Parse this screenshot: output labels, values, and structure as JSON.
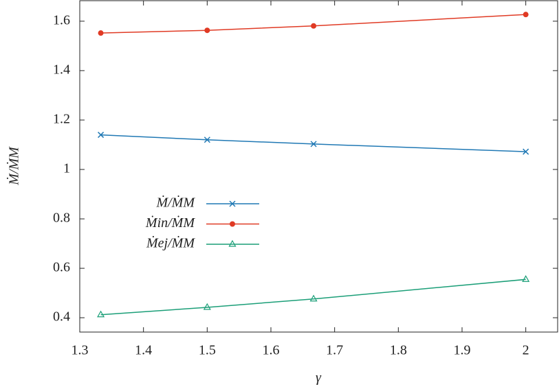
{
  "chart_data": {
    "type": "line",
    "x_label": "γ",
    "y_label": "Ṁ/ṀM",
    "x": [
      1.333,
      1.5,
      1.667,
      2
    ],
    "series": [
      {
        "name": "Ṁ/ṀM",
        "color": "#1f78b4",
        "marker": "x",
        "values": [
          1.14,
          1.12,
          1.103,
          1.072
        ]
      },
      {
        "name": "Ṁin/ṀM",
        "color": "#e03a24",
        "marker": "circle",
        "values": [
          1.552,
          1.563,
          1.581,
          1.627
        ]
      },
      {
        "name": "Ṁej/ṀM",
        "color": "#1a9e77",
        "marker": "triangle",
        "values": [
          0.412,
          0.442,
          0.476,
          0.555
        ]
      }
    ],
    "xlim": [
      1.3,
      2.05
    ],
    "xticks": [
      1.3,
      1.4,
      1.5,
      1.6,
      1.7,
      1.8,
      1.9,
      2
    ],
    "ylim": [
      0.342,
      1.683
    ],
    "yticks": [
      0.4,
      0.6,
      0.8,
      1,
      1.2,
      1.4,
      1.6
    ],
    "grid": false
  }
}
